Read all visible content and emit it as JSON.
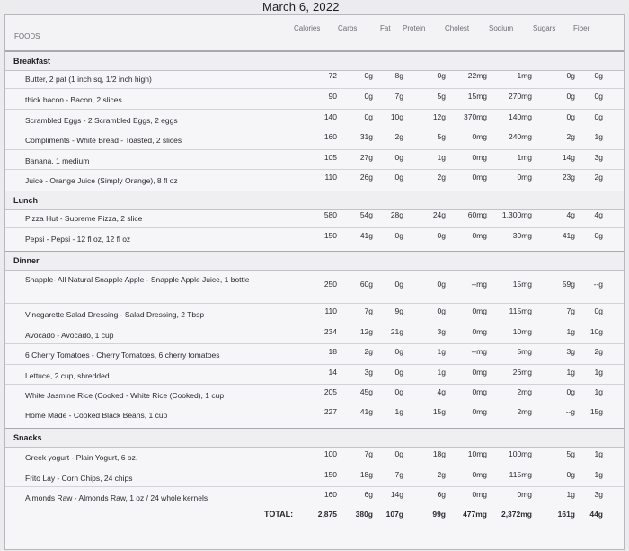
{
  "date": "March 6, 2022",
  "header": {
    "foods": "FOODS",
    "columns": [
      "Calories",
      "Carbs",
      "Fat",
      "Protein",
      "Cholest",
      "Sodium",
      "Sugars",
      "Fiber"
    ]
  },
  "sections": [
    {
      "name": "Breakfast",
      "rows": [
        {
          "food": "Butter, 2 pat (1 inch sq, 1/2 inch high)",
          "values": [
            "72",
            "0g",
            "8g",
            "0g",
            "22mg",
            "1mg",
            "0g",
            "0g"
          ]
        },
        {
          "food": "thick bacon - Bacon, 2 slices",
          "values": [
            "90",
            "0g",
            "7g",
            "5g",
            "15mg",
            "270mg",
            "0g",
            "0g"
          ]
        },
        {
          "food": "Scrambled Eggs - 2 Scrambled Eggs, 2 eggs",
          "values": [
            "140",
            "0g",
            "10g",
            "12g",
            "370mg",
            "140mg",
            "0g",
            "0g"
          ]
        },
        {
          "food": "Compliments - White Bread - Toasted, 2 slices",
          "values": [
            "160",
            "31g",
            "2g",
            "5g",
            "0mg",
            "240mg",
            "2g",
            "1g"
          ]
        },
        {
          "food": "Banana, 1 medium",
          "values": [
            "105",
            "27g",
            "0g",
            "1g",
            "0mg",
            "1mg",
            "14g",
            "3g"
          ]
        },
        {
          "food": "Juice - Orange Juice (Simply Orange), 8 fl oz",
          "values": [
            "110",
            "26g",
            "0g",
            "2g",
            "0mg",
            "0mg",
            "23g",
            "2g"
          ]
        }
      ]
    },
    {
      "name": "Lunch",
      "rows": [
        {
          "food": "Pizza Hut - Supreme Pizza, 2 slice",
          "values": [
            "580",
            "54g",
            "28g",
            "24g",
            "60mg",
            "1,300mg",
            "4g",
            "4g"
          ]
        },
        {
          "food": "Pepsi - Pepsi - 12 fl oz, 12 fl oz",
          "values": [
            "150",
            "41g",
            "0g",
            "0g",
            "0mg",
            "30mg",
            "41g",
            "0g"
          ]
        }
      ]
    },
    {
      "name": "Dinner",
      "rows": [
        {
          "food": "Snapple- All Natural Snapple Apple - Snapple Apple Juice, 1 bottle",
          "values": [
            "250",
            "60g",
            "0g",
            "0g",
            "--mg",
            "15mg",
            "59g",
            "--g"
          ]
        },
        {
          "food": "Vinegarette Salad Dressing - Salad Dressing, 2 Tbsp",
          "values": [
            "110",
            "7g",
            "9g",
            "0g",
            "0mg",
            "115mg",
            "7g",
            "0g"
          ]
        },
        {
          "food": "Avocado - Avocado, 1 cup",
          "values": [
            "234",
            "12g",
            "21g",
            "3g",
            "0mg",
            "10mg",
            "1g",
            "10g"
          ]
        },
        {
          "food": "6 Cherry Tomatoes - Cherry Tomatoes, 6 cherry tomatoes",
          "values": [
            "18",
            "2g",
            "0g",
            "1g",
            "--mg",
            "5mg",
            "3g",
            "2g"
          ]
        },
        {
          "food": "Lettuce, 2 cup, shredded",
          "values": [
            "14",
            "3g",
            "0g",
            "1g",
            "0mg",
            "26mg",
            "1g",
            "1g"
          ]
        },
        {
          "food": "White Jasmine Rice (Cooked - White Rice (Cooked), 1 cup",
          "values": [
            "205",
            "45g",
            "0g",
            "4g",
            "0mg",
            "2mg",
            "0g",
            "1g"
          ]
        },
        {
          "food": "Home Made - Cooked Black Beans, 1 cup",
          "values": [
            "227",
            "41g",
            "1g",
            "15g",
            "0mg",
            "2mg",
            "--g",
            "15g"
          ]
        }
      ]
    },
    {
      "name": "Snacks",
      "rows": [
        {
          "food": "Greek yogurt - Plain Yogurt, 6 oz.",
          "values": [
            "100",
            "7g",
            "0g",
            "18g",
            "10mg",
            "100mg",
            "5g",
            "1g"
          ]
        },
        {
          "food": "Frito Lay - Corn Chips, 24 chips",
          "values": [
            "150",
            "18g",
            "7g",
            "2g",
            "0mg",
            "115mg",
            "0g",
            "1g"
          ]
        },
        {
          "food": "Almonds Raw - Almonds Raw, 1 oz / 24 whole kernels",
          "values": [
            "160",
            "6g",
            "14g",
            "6g",
            "0mg",
            "0mg",
            "1g",
            "3g"
          ]
        }
      ]
    }
  ],
  "total": {
    "label": "TOTAL:",
    "values": [
      "2,875",
      "380g",
      "107g",
      "99g",
      "477mg",
      "2,372mg",
      "161g",
      "44g"
    ]
  }
}
